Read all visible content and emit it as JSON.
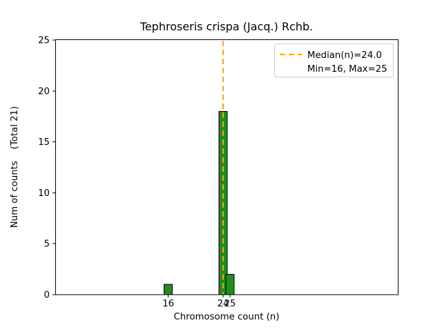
{
  "chart_data": {
    "type": "bar",
    "title": "Tephroseris crispa (Jacq.) Rchb.",
    "xlabel": "Chromosome count (n)",
    "ylabel": "Num of counts    (Total 21)",
    "x": [
      16,
      24,
      25
    ],
    "values": [
      1,
      18,
      2
    ],
    "total_counts": 21,
    "bar_width": 1.2,
    "bar_color": "#228B22",
    "bar_edge_color": "#000000",
    "median": 24.0,
    "min": 16,
    "max": 25,
    "median_color": "#FFA500",
    "legend_edge_color": "#cccccc",
    "legend": {
      "line1": "Median(n)=24.0",
      "line2": "Min=16, Max=25"
    },
    "xlim": [
      -0.5,
      49.5
    ],
    "ylim": [
      0,
      25
    ],
    "xticks": [
      16,
      24,
      25
    ],
    "yticks": [
      0,
      5,
      10,
      15,
      20,
      25
    ],
    "grid": "off",
    "legend_position": "upper right"
  }
}
